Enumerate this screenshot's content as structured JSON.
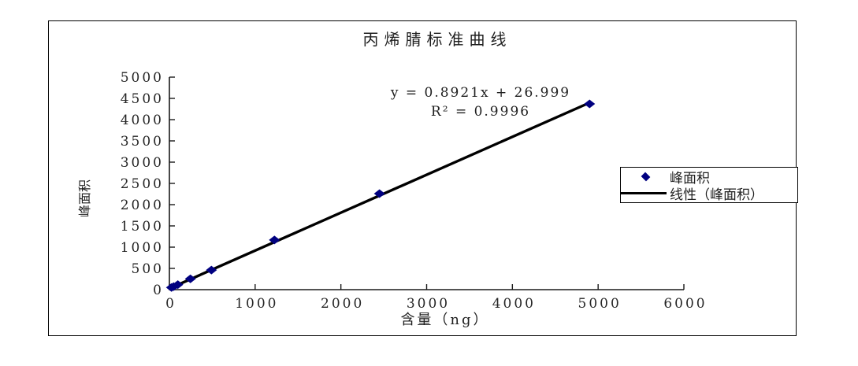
{
  "title": "丙烯腈标准曲线",
  "annotation": {
    "equation": "y = 0.8921x + 26.999",
    "r_squared": "R² = 0.9996"
  },
  "axes": {
    "x_title": "含量（ng）",
    "y_title": "峰面积"
  },
  "legend": {
    "series1": "峰面积",
    "series2": "线性（峰面积）"
  },
  "colors": {
    "marker": "#000080",
    "trendline": "#000000",
    "axis": "#1a1a1a",
    "text": "#1f1f1f",
    "border": "#000000"
  },
  "chart_data": {
    "type": "scatter",
    "title": "丙烯腈标准曲线",
    "xlabel": "含量（ng）",
    "ylabel": "峰面积",
    "xlim": [
      0,
      6000
    ],
    "ylim": [
      0,
      5000
    ],
    "x_ticks": [
      0,
      1000,
      2000,
      3000,
      4000,
      5000,
      6000
    ],
    "y_ticks": [
      0,
      500,
      1000,
      1500,
      2000,
      2500,
      3000,
      3500,
      4000,
      4500,
      5000
    ],
    "grid": false,
    "legend_position": "right",
    "series": [
      {
        "name": "峰面积",
        "type": "scatter",
        "marker": "diamond",
        "color": "#000080",
        "points": [
          [
            24.5,
            50
          ],
          [
            49,
            72
          ],
          [
            98,
            118
          ],
          [
            245,
            255
          ],
          [
            490,
            460
          ],
          [
            1225,
            1170
          ],
          [
            2450,
            2260
          ],
          [
            4900,
            4370
          ]
        ]
      },
      {
        "name": "线性（峰面积）",
        "type": "line",
        "color": "#000000",
        "trendline": {
          "slope": 0.8921,
          "intercept": 26.999,
          "r2": 0.9996,
          "x_range": [
            0,
            4900
          ]
        }
      }
    ]
  }
}
